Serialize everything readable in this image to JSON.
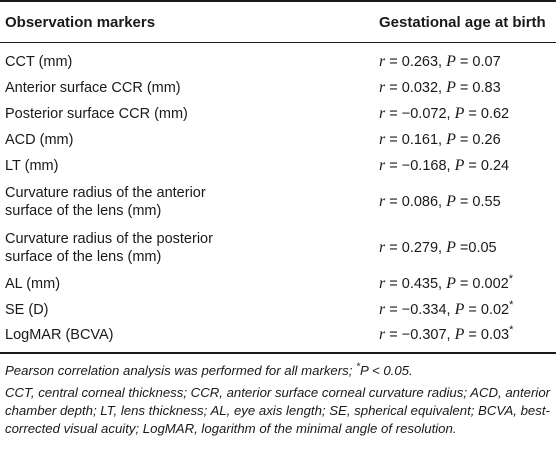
{
  "table": {
    "headers": {
      "col1": "Observation markers",
      "col2": "Gestational age at birth"
    },
    "rows": [
      {
        "label": "CCT (mm)",
        "r_var": "r",
        "r": " = 0.263, ",
        "p_var": "P",
        "p": " = 0.07",
        "sig": ""
      },
      {
        "label": "Anterior surface CCR (mm)",
        "r_var": "r",
        "r": " = 0.032, ",
        "p_var": "P",
        "p": " = 0.83",
        "sig": ""
      },
      {
        "label": "Posterior surface CCR (mm)",
        "r_var": "r",
        "r": " = −0.072, ",
        "p_var": "P",
        "p": " = 0.62",
        "sig": ""
      },
      {
        "label": "ACD (mm)",
        "r_var": "r",
        "r": " = 0.161, ",
        "p_var": "P",
        "p": " = 0.26",
        "sig": ""
      },
      {
        "label": "LT (mm)",
        "r_var": "r",
        "r": " = −0.168, ",
        "p_var": "P",
        "p": " = 0.24",
        "sig": ""
      },
      {
        "label_line1": "Curvature radius of the anterior",
        "label_line2": "surface of the lens (mm)",
        "r_var": "r",
        "r": " = 0.086, ",
        "p_var": "P",
        "p": " = 0.55",
        "sig": ""
      },
      {
        "label_line1": "Curvature radius of the posterior",
        "label_line2": "surface of the lens (mm)",
        "r_var": "r",
        "r": " = 0.279, ",
        "p_var": "P",
        "p": " =0.05",
        "sig": ""
      },
      {
        "label": "AL (mm)",
        "r_var": "r",
        "r": " = 0.435, ",
        "p_var": "P",
        "p": " = 0.002",
        "sig": "*"
      },
      {
        "label": "SE (D)",
        "r_var": "r",
        "r": " = −0.334, ",
        "p_var": "P",
        "p": " = 0.02",
        "sig": "*"
      },
      {
        "label": "LogMAR (BCVA)",
        "r_var": "r",
        "r": " = −0.307, ",
        "p_var": "P",
        "p": " = 0.03",
        "sig": "*"
      }
    ]
  },
  "notes": {
    "pearson_prefix": "Pearson correlation analysis was performed for all markers; ",
    "pearson_sup": "*",
    "pearson_suffix": "P < 0.05.",
    "abbreviations": "CCT, central corneal thickness; CCR, anterior surface corneal curvature radius; ACD, anterior chamber depth; LT, lens thickness; AL, eye axis length; SE, spherical equivalent; BCVA, best-corrected visual acuity; LogMAR, logarithm of the minimal angle of resolution."
  }
}
